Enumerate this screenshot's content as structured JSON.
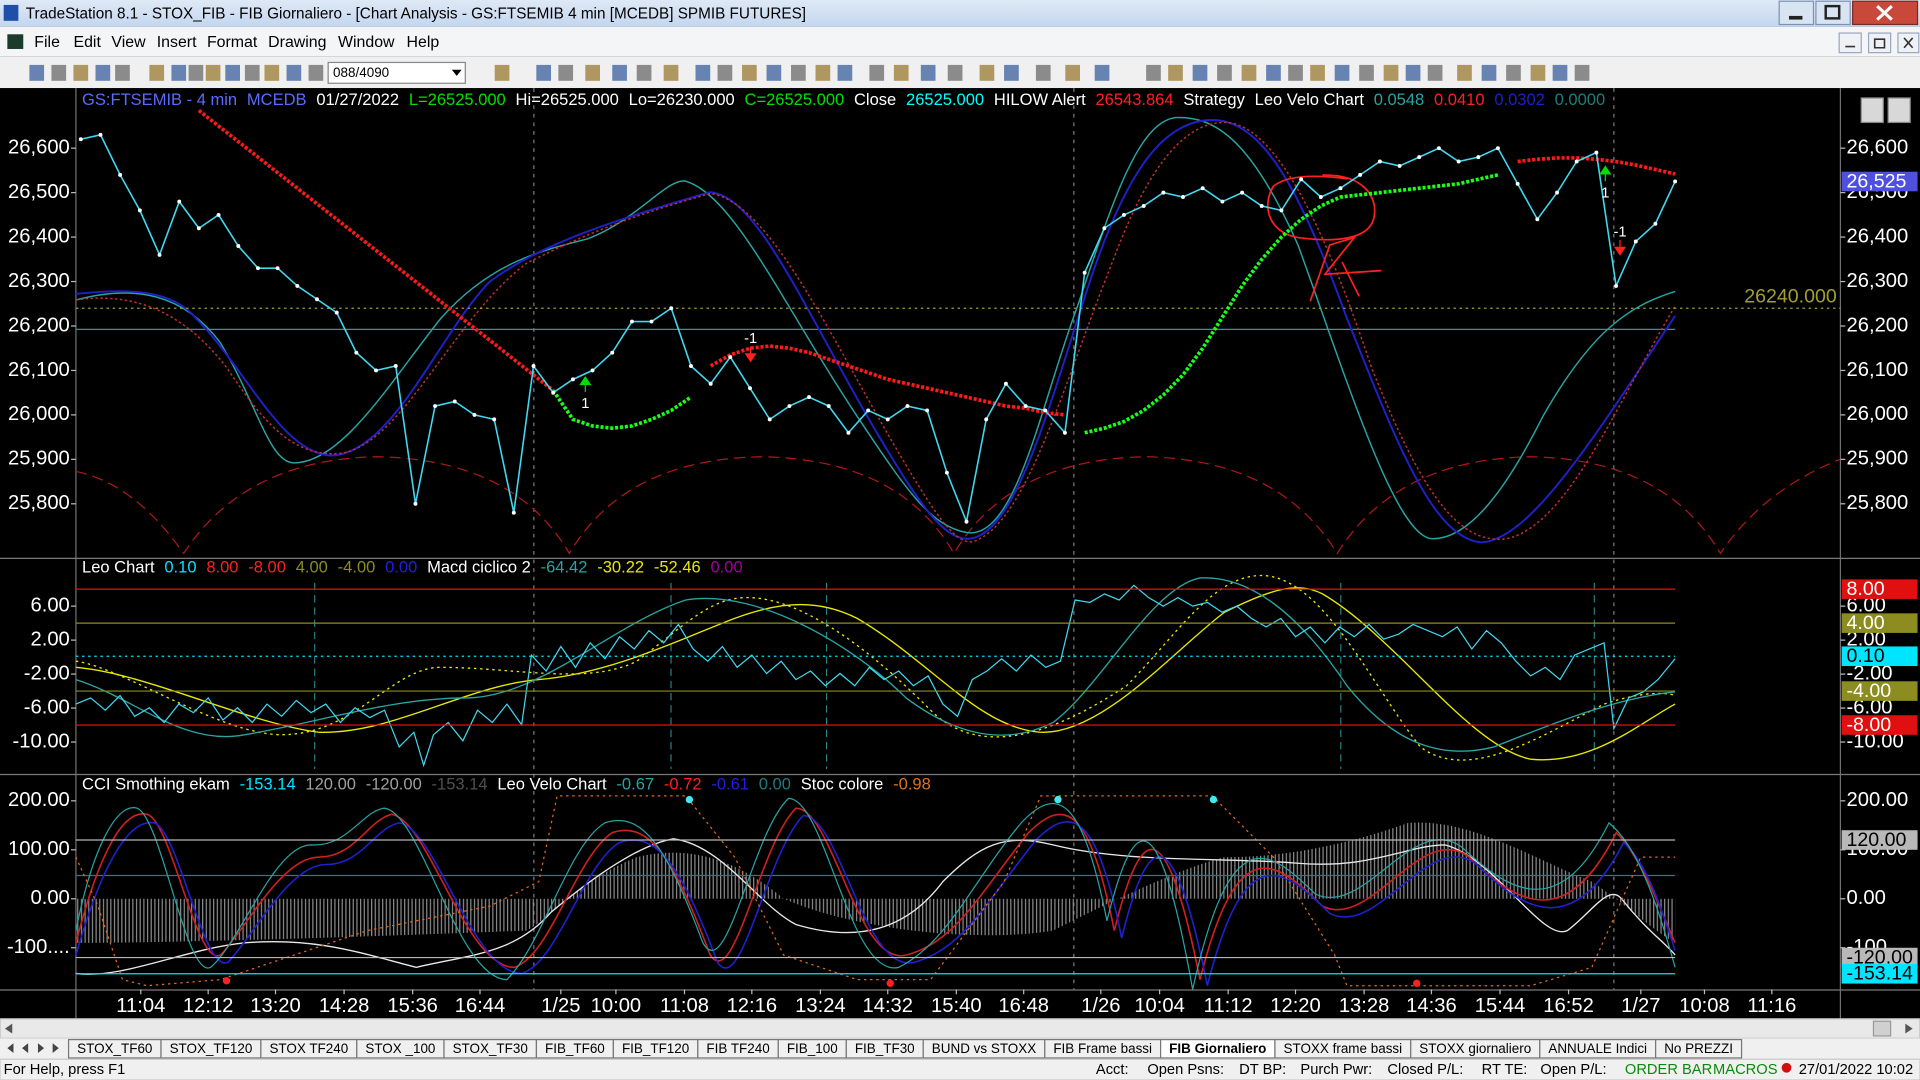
{
  "window": {
    "title": "TradeStation 8.1 - STOX_FIB - FIB Giornaliero - [Chart Analysis - GS:FTSEMIB  4 min  [MCEDB] SPMIB FUTURES]",
    "menu": [
      "File",
      "Edit",
      "View",
      "Insert",
      "Format",
      "Drawing",
      "Window",
      "Help"
    ],
    "toolbar_combo": "088/4090"
  },
  "panes": [
    {
      "header": [
        {
          "text": "GS:FTSEMIB - 4 min",
          "color": "#5a6cff"
        },
        {
          "text": "MCEDB",
          "color": "#5a6cff"
        },
        {
          "text": "01/27/2022",
          "color": "#ffffff"
        },
        {
          "text": "L=26525.000",
          "color": "#00e000"
        },
        {
          "text": "Hi=26525.000",
          "color": "#ffffff"
        },
        {
          "text": "Lo=26230.000",
          "color": "#ffffff"
        },
        {
          "text": "C=26525.000",
          "color": "#00e000"
        },
        {
          "text": "Close",
          "color": "#ffffff"
        },
        {
          "text": "26525.000",
          "color": "#00ffff"
        },
        {
          "text": "HILOW Alert",
          "color": "#ffffff"
        },
        {
          "text": "26543.864",
          "color": "#ff2020"
        },
        {
          "text": "Strategy",
          "color": "#ffffff"
        },
        {
          "text": "Leo Velo Chart",
          "color": "#ffffff"
        },
        {
          "text": "0.0548",
          "color": "#2aa3a3"
        },
        {
          "text": "0.0410",
          "color": "#ff2020"
        },
        {
          "text": "0.0302",
          "color": "#2020c8"
        },
        {
          "text": "0.0000",
          "color": "#1e7e7e"
        }
      ],
      "ylim": [
        25680,
        26735
      ],
      "yticks": [
        {
          "value": 26600,
          "label": "26,600"
        },
        {
          "value": 26500,
          "label": "26,500"
        },
        {
          "value": 26400,
          "label": "26,400"
        },
        {
          "value": 26300,
          "label": "26,300"
        },
        {
          "value": 26200,
          "label": "26,200"
        },
        {
          "value": 26100,
          "label": "26,100"
        },
        {
          "value": 26000,
          "label": "26,000"
        },
        {
          "value": 25900,
          "label": "25,900"
        },
        {
          "value": 25800,
          "label": "25,800"
        }
      ],
      "levels": [
        {
          "value": 26525,
          "label": "26,525",
          "color": "#5050e0"
        }
      ],
      "alert": {
        "value": 26240,
        "label": "26240.000",
        "color": "#a0a030"
      }
    },
    {
      "header": [
        {
          "text": "Leo Chart",
          "color": "#ffffff"
        },
        {
          "text": "0.10",
          "color": "#00e5ff"
        },
        {
          "text": "8.00",
          "color": "#ff2020"
        },
        {
          "text": "-8.00",
          "color": "#ff2020"
        },
        {
          "text": "4.00",
          "color": "#8c8c20"
        },
        {
          "text": "-4.00",
          "color": "#8c8c20"
        },
        {
          "text": "0.00",
          "color": "#2020e0"
        },
        {
          "text": "Macd ciclico 2",
          "color": "#ffffff"
        },
        {
          "text": "-64.42",
          "color": "#2aa3a3"
        },
        {
          "text": "-30.22",
          "color": "#e8e800"
        },
        {
          "text": "-52.46",
          "color": "#e8e800"
        },
        {
          "text": "0.00",
          "color": "#a000a0"
        }
      ],
      "ylim": [
        -13.75,
        11.48
      ],
      "yticks": [
        {
          "value": 6,
          "label": "6.00"
        },
        {
          "value": 2,
          "label": "2.00"
        },
        {
          "value": -2,
          "label": "-2.00"
        },
        {
          "value": -6,
          "label": "-6.00"
        },
        {
          "value": -10,
          "label": "-10.00"
        }
      ],
      "levels": [
        {
          "value": 8,
          "label": "8.00",
          "color": "#e01010"
        },
        {
          "value": 4,
          "label": "4.00",
          "color": "#8c8c20"
        },
        {
          "value": 0.1,
          "label": "0.10",
          "color": "#00e5ff"
        },
        {
          "value": -4,
          "label": "-4.00",
          "color": "#8c8c20"
        },
        {
          "value": -8,
          "label": "-8.00",
          "color": "#e01010"
        }
      ]
    },
    {
      "header": [
        {
          "text": "CCI Smothing ekam",
          "color": "#ffffff"
        },
        {
          "text": "-153.14",
          "color": "#00e5ff"
        },
        {
          "text": "120.00",
          "color": "#a0a0a0"
        },
        {
          "text": "-120.00",
          "color": "#a0a0a0"
        },
        {
          "text": "-153.14",
          "color": "#505050"
        },
        {
          "text": "Leo Velo Chart",
          "color": "#ffffff"
        },
        {
          "text": "-0.67",
          "color": "#2aa3a3"
        },
        {
          "text": "-0.72",
          "color": "#ff2020"
        },
        {
          "text": "-0.61",
          "color": "#2020e0"
        },
        {
          "text": "0.00",
          "color": "#1e7e7e"
        },
        {
          "text": "Stoc colore",
          "color": "#ffffff"
        },
        {
          "text": "-0.98",
          "color": "#e07020"
        }
      ],
      "ylim": [
        -185,
        252.5
      ],
      "yticks": [
        {
          "value": 200,
          "label": "200.00"
        },
        {
          "value": 100,
          "label": "100.00"
        },
        {
          "value": 0,
          "label": "0.00"
        },
        {
          "value": -100,
          "label": "-100...."
        }
      ],
      "levels": [
        {
          "value": 120,
          "label": "120.00",
          "color": "#b8b8b8"
        },
        {
          "value": -120,
          "label": "-120.00",
          "color": "#b8b8b8"
        },
        {
          "value": -153.14,
          "label": "-153.14",
          "color": "#00e5ff"
        }
      ]
    }
  ],
  "price": {
    "color": "#40d8f0",
    "values": [
      26620,
      26630,
      26540,
      26460,
      26360,
      26480,
      26420,
      26450,
      26380,
      26330,
      26330,
      26290,
      26260,
      26230,
      26140,
      26100,
      26110,
      25800,
      26020,
      26030,
      26000,
      25990,
      25780,
      26110,
      26050,
      26080,
      26100,
      26140,
      26210,
      26210,
      26240,
      26110,
      26070,
      26130,
      26060,
      25990,
      26020,
      26040,
      26020,
      25960,
      26010,
      25990,
      26020,
      26010,
      25870,
      25760,
      25990,
      26070,
      26020,
      26010,
      25960,
      26320,
      26420,
      26450,
      26470,
      26500,
      26490,
      26510,
      26480,
      26500,
      26470,
      26460,
      26530,
      26490,
      26510,
      26540,
      26570,
      26560,
      26580,
      26600,
      26570,
      26580,
      26600,
      26520,
      26440,
      26500,
      26570,
      26590,
      26290,
      26390,
      26430,
      26525
    ],
    "trail_down": {
      "color": "#ff1a1a",
      "values": [
        null,
        null,
        null,
        null,
        null,
        null,
        26685,
        26650,
        26615,
        26580,
        26545,
        26510,
        26475,
        26440,
        26405,
        26370,
        26335,
        26300,
        26265,
        26230,
        26195,
        26160,
        26125,
        26090,
        26055,
        null,
        null,
        null,
        null,
        null,
        null,
        null,
        26110,
        26135,
        26150,
        26155,
        26150,
        26140,
        26125,
        26110,
        26095,
        26080,
        26070,
        26060,
        26050,
        26040,
        26030,
        26020,
        26015,
        26005,
        26000,
        null,
        null,
        null,
        null,
        null,
        null,
        null,
        null,
        null,
        null,
        null,
        null,
        null,
        null,
        null,
        null,
        null,
        null,
        null,
        null,
        null,
        null,
        26570,
        26575,
        26578,
        26578,
        26575,
        26570,
        26562,
        26552,
        26542
      ]
    },
    "trail_up": {
      "color": "#1aff1a",
      "values": [
        null,
        null,
        null,
        null,
        null,
        null,
        null,
        null,
        null,
        null,
        null,
        null,
        null,
        null,
        null,
        null,
        null,
        null,
        null,
        null,
        null,
        null,
        null,
        null,
        26055,
        25990,
        25975,
        25970,
        25975,
        25990,
        26010,
        26040,
        null,
        null,
        null,
        null,
        null,
        null,
        null,
        null,
        null,
        null,
        null,
        null,
        null,
        null,
        null,
        null,
        null,
        null,
        null,
        25960,
        25970,
        25985,
        26010,
        26045,
        26090,
        26150,
        26220,
        26290,
        26350,
        26400,
        26440,
        26470,
        26490,
        26495,
        26500,
        26505,
        26510,
        26515,
        26520,
        26530,
        26540,
        null,
        null,
        null,
        null,
        null,
        null,
        null,
        null,
        null
      ]
    }
  },
  "signals": [
    {
      "label": "1",
      "color": "#00e000"
    },
    {
      "label": "-1",
      "color": "#ff2020"
    },
    {
      "label": "1",
      "color": "#00e000"
    },
    {
      "label": "-1",
      "color": "#ff2020"
    }
  ],
  "time_axis": {
    "labels": [
      "11:04",
      "12:12",
      "13:20",
      "14:28",
      "15:36",
      "16:44",
      "1/25",
      "10:00",
      "11:08",
      "12:16",
      "13:24",
      "14:32",
      "15:40",
      "16:48",
      "1/26",
      "10:04",
      "11:12",
      "12:20",
      "13:28",
      "14:36",
      "15:44",
      "16:52",
      "1/27",
      "10:08",
      "11:16"
    ]
  },
  "tabs": [
    {
      "label": "STOX_TF60"
    },
    {
      "label": "STOX_TF120"
    },
    {
      "label": "STOX TF240"
    },
    {
      "label": "STOX _100"
    },
    {
      "label": "STOX_TF30"
    },
    {
      "label": "FIB_TF60"
    },
    {
      "label": "FIB_TF120"
    },
    {
      "label": "FIB TF240"
    },
    {
      "label": "FIB_100"
    },
    {
      "label": "FIB_TF30"
    },
    {
      "label": "BUND vs STOXX"
    },
    {
      "label": "FIB Frame bassi"
    },
    {
      "label": "FIB Giornaliero",
      "active": true
    },
    {
      "label": "STOXX frame bassi"
    },
    {
      "label": "STOXX giornaliero"
    },
    {
      "label": "ANNUALE Indici"
    },
    {
      "label": "No PREZZI"
    }
  ],
  "status": {
    "help": "For Help, press F1",
    "fields": [
      "Acct:",
      "Open Psns:",
      "DT BP:",
      "Purch Pwr:",
      "Closed P/L:",
      "RT TE:",
      "Open P/L:"
    ],
    "order_bar": "ORDER BAR",
    "macros": "MACROS",
    "datetime": "27/01/2022 10:02"
  }
}
